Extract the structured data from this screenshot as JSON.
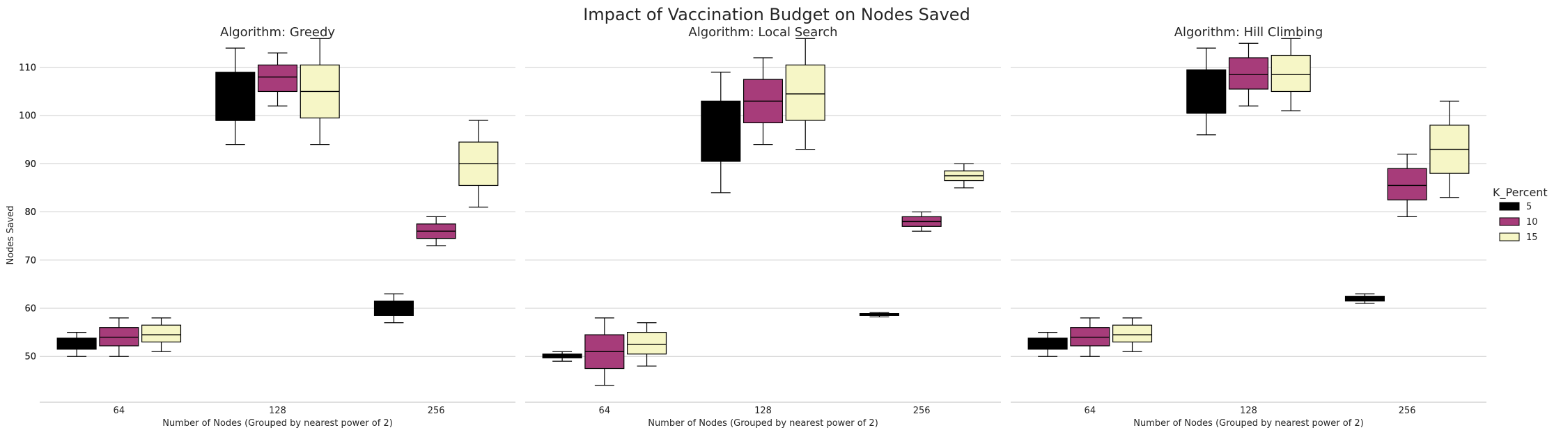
{
  "figure": {
    "title": "Impact of Vaccination Budget on Nodes Saved"
  },
  "legend": {
    "title": "K_Percent",
    "entries": [
      {
        "label": "5",
        "color": "#000000"
      },
      {
        "label": "10",
        "color": "#a73c7a"
      },
      {
        "label": "15",
        "color": "#f6f6c6"
      }
    ]
  },
  "chart_data": [
    {
      "type": "box",
      "title": "Algorithm: Greedy",
      "xlabel": "Number of Nodes (Grouped by nearest power of 2)",
      "ylabel": "Nodes Saved",
      "ylim": [
        40.5,
        118.5
      ],
      "yticks": [
        50,
        60,
        70,
        80,
        90,
        100,
        110
      ],
      "categories": [
        "64",
        "128",
        "256"
      ],
      "grid": true,
      "series": [
        {
          "name": "5",
          "boxes": [
            {
              "category": "64",
              "whislo": 50,
              "q1": 51.5,
              "median": 53,
              "q3": 53.8,
              "whishi": 55
            },
            {
              "category": "128",
              "whislo": 94,
              "q1": 99,
              "median": 99,
              "q3": 109,
              "whishi": 114
            },
            {
              "category": "256",
              "whislo": 57,
              "q1": 58.5,
              "median": 59,
              "q3": 61.5,
              "whishi": 63
            }
          ]
        },
        {
          "name": "10",
          "boxes": [
            {
              "category": "64",
              "whislo": 50,
              "q1": 52.2,
              "median": 54,
              "q3": 56,
              "whishi": 58
            },
            {
              "category": "128",
              "whislo": 102,
              "q1": 105,
              "median": 108,
              "q3": 110.5,
              "whishi": 113
            },
            {
              "category": "256",
              "whislo": 73,
              "q1": 74.5,
              "median": 76,
              "q3": 77.5,
              "whishi": 79
            }
          ]
        },
        {
          "name": "15",
          "boxes": [
            {
              "category": "64",
              "whislo": 51,
              "q1": 53,
              "median": 54.5,
              "q3": 56.5,
              "whishi": 58
            },
            {
              "category": "128",
              "whislo": 94,
              "q1": 99.5,
              "median": 105,
              "q3": 110.5,
              "whishi": 116
            },
            {
              "category": "256",
              "whislo": 81,
              "q1": 85.5,
              "median": 90,
              "q3": 94.5,
              "whishi": 99
            }
          ]
        }
      ]
    },
    {
      "type": "box",
      "title": "Algorithm: Local Search",
      "xlabel": "Number of Nodes (Grouped by nearest power of 2)",
      "ylabel": "",
      "ylim": [
        40.5,
        118.5
      ],
      "yticks": [
        50,
        60,
        70,
        80,
        90,
        100,
        110
      ],
      "categories": [
        "64",
        "128",
        "256"
      ],
      "grid": true,
      "series": [
        {
          "name": "5",
          "boxes": [
            {
              "category": "64",
              "whislo": 49,
              "q1": 49.7,
              "median": 50,
              "q3": 50.5,
              "whishi": 51
            },
            {
              "category": "128",
              "whislo": 84,
              "q1": 90.5,
              "median": 90.5,
              "q3": 103,
              "whishi": 109
            },
            {
              "category": "256",
              "whislo": 58.2,
              "q1": 58.5,
              "median": 58.7,
              "q3": 58.9,
              "whishi": 59.1
            }
          ]
        },
        {
          "name": "10",
          "boxes": [
            {
              "category": "64",
              "whislo": 44,
              "q1": 47.5,
              "median": 51,
              "q3": 54.5,
              "whishi": 58
            },
            {
              "category": "128",
              "whislo": 94,
              "q1": 98.5,
              "median": 103,
              "q3": 107.5,
              "whishi": 112
            },
            {
              "category": "256",
              "whislo": 76,
              "q1": 77,
              "median": 78,
              "q3": 79,
              "whishi": 80
            }
          ]
        },
        {
          "name": "15",
          "boxes": [
            {
              "category": "64",
              "whislo": 48,
              "q1": 50.5,
              "median": 52.5,
              "q3": 55,
              "whishi": 57
            },
            {
              "category": "128",
              "whislo": 93,
              "q1": 99,
              "median": 104.5,
              "q3": 110.5,
              "whishi": 116
            },
            {
              "category": "256",
              "whislo": 85,
              "q1": 86.5,
              "median": 87.5,
              "q3": 88.5,
              "whishi": 90
            }
          ]
        }
      ]
    },
    {
      "type": "box",
      "title": "Algorithm: Hill Climbing",
      "xlabel": "Number of Nodes (Grouped by nearest power of 2)",
      "ylabel": "",
      "ylim": [
        40.5,
        118.5
      ],
      "yticks": [
        50,
        60,
        70,
        80,
        90,
        100,
        110
      ],
      "categories": [
        "64",
        "128",
        "256"
      ],
      "grid": true,
      "series": [
        {
          "name": "5",
          "boxes": [
            {
              "category": "64",
              "whislo": 50,
              "q1": 51.5,
              "median": 53,
              "q3": 53.8,
              "whishi": 55
            },
            {
              "category": "128",
              "whislo": 96,
              "q1": 100.5,
              "median": 100.5,
              "q3": 109.5,
              "whishi": 114
            },
            {
              "category": "256",
              "whislo": 61,
              "q1": 61.5,
              "median": 62,
              "q3": 62.5,
              "whishi": 63
            }
          ]
        },
        {
          "name": "10",
          "boxes": [
            {
              "category": "64",
              "whislo": 50,
              "q1": 52.2,
              "median": 54,
              "q3": 56,
              "whishi": 58
            },
            {
              "category": "128",
              "whislo": 102,
              "q1": 105.5,
              "median": 108.5,
              "q3": 112,
              "whishi": 115
            },
            {
              "category": "256",
              "whislo": 79,
              "q1": 82.5,
              "median": 85.5,
              "q3": 89,
              "whishi": 92
            }
          ]
        },
        {
          "name": "15",
          "boxes": [
            {
              "category": "64",
              "whislo": 51,
              "q1": 53,
              "median": 54.5,
              "q3": 56.5,
              "whishi": 58
            },
            {
              "category": "128",
              "whislo": 101,
              "q1": 105,
              "median": 108.5,
              "q3": 112.5,
              "whishi": 116
            },
            {
              "category": "256",
              "whislo": 83,
              "q1": 88,
              "median": 93,
              "q3": 98,
              "whishi": 103
            }
          ]
        }
      ]
    }
  ]
}
